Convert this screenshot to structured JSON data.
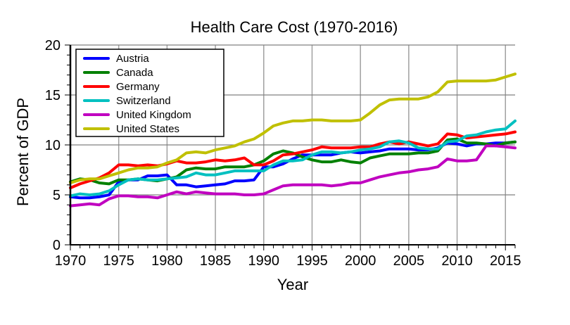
{
  "chart_data": {
    "type": "line",
    "title": "Health Care Cost (1970-2016)",
    "xlabel": "Year",
    "ylabel": "Percent of GDP",
    "xlim": [
      1970,
      2016
    ],
    "ylim": [
      0,
      20
    ],
    "xticks": [
      1970,
      1975,
      1980,
      1985,
      1990,
      1995,
      2000,
      2005,
      2010,
      2015
    ],
    "yticks": [
      0,
      5,
      10,
      15,
      20
    ],
    "grid": true,
    "legend_position": "top-left",
    "x": [
      1970,
      1971,
      1972,
      1973,
      1974,
      1975,
      1976,
      1977,
      1978,
      1979,
      1980,
      1981,
      1982,
      1983,
      1984,
      1985,
      1986,
      1987,
      1988,
      1989,
      1990,
      1991,
      1992,
      1993,
      1994,
      1995,
      1996,
      1997,
      1998,
      1999,
      2000,
      2001,
      2002,
      2003,
      2004,
      2005,
      2006,
      2007,
      2008,
      2009,
      2010,
      2011,
      2012,
      2013,
      2014,
      2015,
      2016
    ],
    "series": [
      {
        "name": "Austria",
        "color": "#0000ff",
        "values": [
          4.8,
          4.7,
          4.7,
          4.8,
          5.0,
          6.3,
          6.5,
          6.5,
          6.9,
          6.9,
          7.0,
          6.0,
          6.0,
          5.8,
          5.9,
          6.0,
          6.1,
          6.4,
          6.4,
          6.5,
          7.8,
          7.8,
          8.1,
          8.6,
          9.0,
          9.0,
          9.0,
          9.0,
          9.2,
          9.3,
          9.2,
          9.3,
          9.4,
          9.6,
          9.6,
          9.6,
          9.5,
          9.5,
          9.7,
          10.2,
          10.1,
          9.9,
          10.1,
          10.1,
          10.2,
          10.2,
          10.3
        ]
      },
      {
        "name": "Canada",
        "color": "#008000",
        "values": [
          6.3,
          6.6,
          6.5,
          6.2,
          6.1,
          6.5,
          6.5,
          6.6,
          6.5,
          6.4,
          6.6,
          6.8,
          7.5,
          7.7,
          7.6,
          7.6,
          7.8,
          7.8,
          7.8,
          8.0,
          8.4,
          9.1,
          9.4,
          9.2,
          8.8,
          8.5,
          8.3,
          8.3,
          8.5,
          8.3,
          8.2,
          8.7,
          8.9,
          9.1,
          9.1,
          9.1,
          9.2,
          9.2,
          9.4,
          10.5,
          10.6,
          10.2,
          10.2,
          10.1,
          9.9,
          10.2,
          10.3
        ]
      },
      {
        "name": "Germany",
        "color": "#ff0000",
        "values": [
          5.7,
          6.1,
          6.4,
          6.7,
          7.2,
          8.0,
          8.0,
          7.9,
          8.0,
          7.9,
          8.1,
          8.4,
          8.2,
          8.2,
          8.3,
          8.5,
          8.4,
          8.5,
          8.7,
          8.0,
          8.0,
          8.4,
          9.0,
          9.1,
          9.3,
          9.5,
          9.8,
          9.7,
          9.7,
          9.7,
          9.8,
          9.8,
          10.1,
          10.3,
          10.1,
          10.3,
          10.1,
          9.9,
          10.1,
          11.1,
          11.0,
          10.7,
          10.8,
          10.9,
          11.0,
          11.1,
          11.3
        ]
      },
      {
        "name": "Switzerland",
        "color": "#00c0c0",
        "values": [
          4.9,
          5.1,
          5.0,
          5.1,
          5.4,
          6.0,
          6.5,
          6.6,
          6.5,
          6.5,
          6.6,
          6.7,
          6.8,
          7.2,
          7.0,
          7.0,
          7.2,
          7.4,
          7.4,
          7.4,
          7.4,
          8.0,
          8.4,
          8.4,
          8.5,
          9.0,
          9.3,
          9.3,
          9.2,
          9.3,
          9.5,
          9.6,
          9.8,
          10.3,
          10.4,
          10.2,
          9.7,
          9.6,
          9.6,
          10.3,
          10.4,
          10.9,
          11.0,
          11.3,
          11.5,
          11.6,
          12.4
        ]
      },
      {
        "name": "United Kingdom",
        "color": "#c000c0",
        "values": [
          3.9,
          4.0,
          4.1,
          4.0,
          4.6,
          4.9,
          4.9,
          4.8,
          4.8,
          4.7,
          5.0,
          5.3,
          5.1,
          5.3,
          5.2,
          5.1,
          5.1,
          5.1,
          5.0,
          5.0,
          5.1,
          5.5,
          5.9,
          6.0,
          6.0,
          6.0,
          6.0,
          5.9,
          6.0,
          6.2,
          6.2,
          6.5,
          6.8,
          7.0,
          7.2,
          7.3,
          7.5,
          7.6,
          7.8,
          8.6,
          8.4,
          8.4,
          8.5,
          9.9,
          9.9,
          9.8,
          9.7
        ]
      },
      {
        "name": "United States",
        "color": "#c0c000",
        "values": [
          6.2,
          6.5,
          6.6,
          6.6,
          6.9,
          7.2,
          7.5,
          7.7,
          7.7,
          7.8,
          8.2,
          8.5,
          9.2,
          9.3,
          9.2,
          9.5,
          9.7,
          9.9,
          10.3,
          10.6,
          11.2,
          11.9,
          12.2,
          12.4,
          12.4,
          12.5,
          12.5,
          12.4,
          12.4,
          12.4,
          12.5,
          13.2,
          14.0,
          14.5,
          14.6,
          14.6,
          14.6,
          14.8,
          15.3,
          16.3,
          16.4,
          16.4,
          16.4,
          16.4,
          16.5,
          16.8,
          17.1
        ]
      }
    ]
  }
}
